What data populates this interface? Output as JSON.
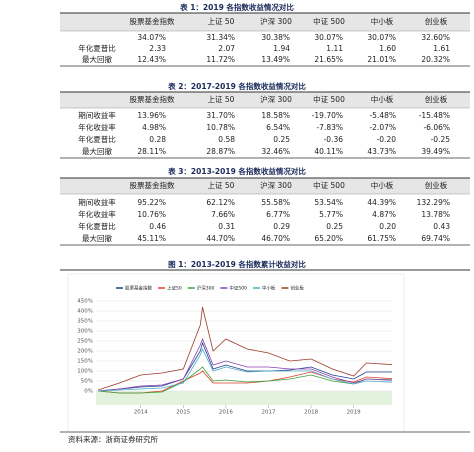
{
  "tables": [
    {
      "title": "表 1：2019 各指数收益情况对比",
      "columns": [
        "股票基金指数",
        "上证 50",
        "沪深 300",
        "中证 500",
        "中小板",
        "创业板"
      ],
      "rows": [
        {
          "label": null,
          "cells": [
            "34.07%",
            "31.34%",
            "30.38%",
            "30.07%",
            "30.07%",
            "32.60%"
          ]
        },
        {
          "label": "年化夏普比",
          "cells": [
            "2.33",
            "2.07",
            "1.94",
            "1.11",
            "1.60",
            "1.61"
          ]
        },
        {
          "label": "最大回撤",
          "cells": [
            "12.43%",
            "11.72%",
            "13.49%",
            "21.65%",
            "21.01%",
            "20.32%"
          ]
        }
      ]
    },
    {
      "title": "表 2：2017-2019 各指数收益情况对比",
      "columns": [
        "股票基金指数",
        "上证 50",
        "沪深 300",
        "中证 500",
        "中小板",
        "创业板"
      ],
      "rows": [
        {
          "label": "期间收益率",
          "cells": [
            "13.96%",
            "31.70%",
            "18.58%",
            "-19.70%",
            "-5.48%",
            "-15.48%"
          ]
        },
        {
          "label": "年化收益率",
          "cells": [
            "4.98%",
            "10.78%",
            "6.54%",
            "-7.83%",
            "-2.07%",
            "-6.06%"
          ]
        },
        {
          "label": "年化夏普比",
          "cells": [
            "0.28",
            "0.58",
            "0.25",
            "-0.36",
            "-0.20",
            "-0.25"
          ]
        },
        {
          "label": "最大回撤",
          "cells": [
            "28.11%",
            "28.87%",
            "32.46%",
            "40.11%",
            "43.73%",
            "39.49%"
          ]
        }
      ]
    },
    {
      "title": "表 3：2013-2019 各指数收益情况对比",
      "columns": [
        "股票基金指数",
        "上证 50",
        "沪深 300",
        "中证 500",
        "中小板",
        "创业板"
      ],
      "rows": [
        {
          "label": "期间收益率",
          "cells": [
            "95.22%",
            "62.12%",
            "55.58%",
            "53.54%",
            "44.39%",
            "132.29%"
          ]
        },
        {
          "label": "年化收益率",
          "cells": [
            "10.76%",
            "7.66%",
            "6.77%",
            "5.77%",
            "4.87%",
            "13.78%"
          ]
        },
        {
          "label": "年化夏普比",
          "cells": [
            "0.46",
            "0.31",
            "0.29",
            "0.25",
            "0.20",
            "0.43"
          ]
        },
        {
          "label": "最大回撤",
          "cells": [
            "45.11%",
            "44.70%",
            "46.70%",
            "65.20%",
            "61.75%",
            "69.74%"
          ]
        }
      ]
    }
  ],
  "chart_data": {
    "type": "line",
    "title": "图 1：2013-2019 各指数累计收益对比",
    "x": [
      2013.0,
      2013.5,
      2014.0,
      2014.5,
      2015.0,
      2015.4,
      2015.45,
      2015.7,
      2016.0,
      2016.5,
      2017.0,
      2017.5,
      2018.0,
      2018.5,
      2019.0,
      2019.3,
      2019.9
    ],
    "xlim": [
      2012.95,
      2019.9
    ],
    "xticks": [
      2014,
      2015,
      2016,
      2017,
      2018,
      2019
    ],
    "ylim": [
      0,
      450
    ],
    "yticks": [
      {
        "value": 0,
        "label": "0%"
      },
      {
        "value": 50,
        "label": "50%"
      },
      {
        "value": 100,
        "label": "100%"
      },
      {
        "value": 150,
        "label": "150%"
      },
      {
        "value": 200,
        "label": "200%"
      },
      {
        "value": 250,
        "label": "250%"
      },
      {
        "value": 300,
        "label": "300%"
      },
      {
        "value": 350,
        "label": "350%"
      },
      {
        "value": 400,
        "label": "400%"
      },
      {
        "value": 450,
        "label": "450%"
      }
    ],
    "grid": true,
    "series": [
      {
        "name": "股票基金指数",
        "color": "#1f3f8f",
        "values": [
          0,
          10,
          20,
          25,
          60,
          200,
          240,
          110,
          130,
          100,
          100,
          105,
          120,
          80,
          60,
          95,
          95
        ]
      },
      {
        "name": "上证50",
        "color": "#e0402a",
        "values": [
          0,
          -10,
          -10,
          0,
          50,
          90,
          100,
          40,
          40,
          40,
          50,
          70,
          95,
          60,
          45,
          70,
          62
        ]
      },
      {
        "name": "沪深300",
        "color": "#3aa03a",
        "values": [
          0,
          -10,
          -10,
          -5,
          45,
          110,
          120,
          50,
          55,
          45,
          50,
          60,
          80,
          50,
          35,
          60,
          56
        ]
      },
      {
        "name": "中证500",
        "color": "#8a3fb0",
        "values": [
          0,
          10,
          25,
          30,
          60,
          230,
          260,
          130,
          150,
          120,
          120,
          110,
          110,
          70,
          40,
          60,
          54
        ]
      },
      {
        "name": "中小板",
        "color": "#4bacc6",
        "values": [
          0,
          5,
          10,
          15,
          40,
          180,
          210,
          100,
          120,
          95,
          100,
          100,
          100,
          60,
          35,
          50,
          44
        ]
      },
      {
        "name": "创业板",
        "color": "#9b3a2a",
        "values": [
          5,
          40,
          80,
          90,
          110,
          330,
          420,
          200,
          260,
          210,
          190,
          150,
          160,
          110,
          75,
          140,
          132
        ]
      }
    ]
  },
  "source": "资料来源：浙商证券研究所"
}
